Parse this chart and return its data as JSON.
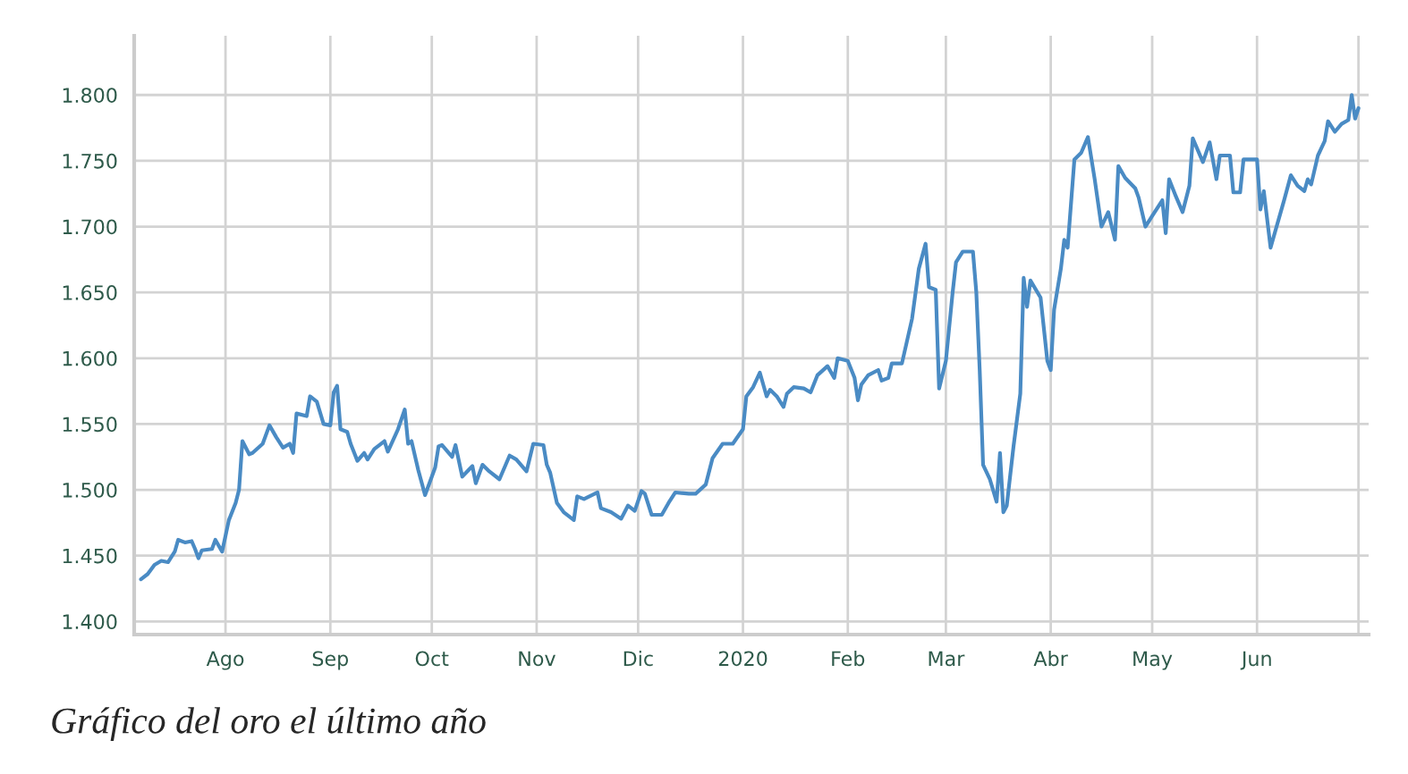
{
  "chart_data": {
    "type": "line",
    "x": [
      "2019-07-07",
      "2019-07-09",
      "2019-07-11",
      "2019-07-13",
      "2019-07-15",
      "2019-07-17",
      "2019-07-18",
      "2019-07-20",
      "2019-07-22",
      "2019-07-23",
      "2019-07-24",
      "2019-07-25",
      "2019-07-28",
      "2019-07-29",
      "2019-07-31",
      "2019-08-02",
      "2019-08-04",
      "2019-08-05",
      "2019-08-06",
      "2019-08-08",
      "2019-08-09",
      "2019-08-12",
      "2019-08-14",
      "2019-08-16",
      "2019-08-18",
      "2019-08-20",
      "2019-08-21",
      "2019-08-22",
      "2019-08-25",
      "2019-08-26",
      "2019-08-28",
      "2019-08-30",
      "2019-09-01",
      "2019-09-02",
      "2019-09-03",
      "2019-09-04",
      "2019-09-06",
      "2019-09-07",
      "2019-09-09",
      "2019-09-11",
      "2019-09-12",
      "2019-09-14",
      "2019-09-17",
      "2019-09-18",
      "2019-09-21",
      "2019-09-23",
      "2019-09-24",
      "2019-09-25",
      "2019-09-27",
      "2019-09-29",
      "2019-10-02",
      "2019-10-03",
      "2019-10-04",
      "2019-10-07",
      "2019-10-08",
      "2019-10-10",
      "2019-10-13",
      "2019-10-14",
      "2019-10-16",
      "2019-10-18",
      "2019-10-21",
      "2019-10-24",
      "2019-10-26",
      "2019-10-29",
      "2019-10-31",
      "2019-11-03",
      "2019-11-04",
      "2019-11-05",
      "2019-11-07",
      "2019-11-09",
      "2019-11-12",
      "2019-11-13",
      "2019-11-15",
      "2019-11-19",
      "2019-11-20",
      "2019-11-23",
      "2019-11-26",
      "2019-11-28",
      "2019-11-30",
      "2019-12-02",
      "2019-12-03",
      "2019-12-05",
      "2019-12-08",
      "2019-12-10",
      "2019-12-12",
      "2019-12-16",
      "2019-12-18",
      "2019-12-21",
      "2019-12-23",
      "2019-12-26",
      "2019-12-29",
      "2020-01-01",
      "2020-01-02",
      "2020-01-04",
      "2020-01-06",
      "2020-01-08",
      "2020-01-09",
      "2020-01-11",
      "2020-01-13",
      "2020-01-14",
      "2020-01-16",
      "2020-01-19",
      "2020-01-21",
      "2020-01-23",
      "2020-01-26",
      "2020-01-28",
      "2020-01-29",
      "2020-02-01",
      "2020-02-03",
      "2020-02-04",
      "2020-02-05",
      "2020-02-07",
      "2020-02-10",
      "2020-02-11",
      "2020-02-13",
      "2020-02-14",
      "2020-02-17",
      "2020-02-20",
      "2020-02-22",
      "2020-02-24",
      "2020-02-25",
      "2020-02-27",
      "2020-02-28",
      "2020-03-01",
      "2020-03-03",
      "2020-03-04",
      "2020-03-06",
      "2020-03-09",
      "2020-03-10",
      "2020-03-11",
      "2020-03-12",
      "2020-03-14",
      "2020-03-16",
      "2020-03-17",
      "2020-03-18",
      "2020-03-19",
      "2020-03-21",
      "2020-03-23",
      "2020-03-24",
      "2020-03-25",
      "2020-03-26",
      "2020-03-29",
      "2020-03-31",
      "2020-04-01",
      "2020-04-02",
      "2020-04-04",
      "2020-04-05",
      "2020-04-06",
      "2020-04-08",
      "2020-04-10",
      "2020-04-12",
      "2020-04-14",
      "2020-04-16",
      "2020-04-18",
      "2020-04-20",
      "2020-04-21",
      "2020-04-23",
      "2020-04-26",
      "2020-04-27",
      "2020-04-29",
      "2020-05-01",
      "2020-05-04",
      "2020-05-05",
      "2020-05-06",
      "2020-05-08",
      "2020-05-10",
      "2020-05-12",
      "2020-05-13",
      "2020-05-16",
      "2020-05-18",
      "2020-05-20",
      "2020-05-21",
      "2020-05-24",
      "2020-05-25",
      "2020-05-27",
      "2020-05-28",
      "2020-06-01",
      "2020-06-02",
      "2020-06-03",
      "2020-06-05",
      "2020-06-07",
      "2020-06-09",
      "2020-06-11",
      "2020-06-13",
      "2020-06-15",
      "2020-06-16",
      "2020-06-17",
      "2020-06-19",
      "2020-06-21",
      "2020-06-22",
      "2020-06-24",
      "2020-06-26",
      "2020-06-28",
      "2020-06-29",
      "2020-06-30",
      "2020-07-01"
    ],
    "series": [
      {
        "color": "#4a8bc4",
        "values": [
          1432,
          1436,
          1443,
          1446,
          1445,
          1453,
          1462,
          1460,
          1461,
          1455,
          1448,
          1454,
          1455,
          1462,
          1453,
          1477,
          1490,
          1500,
          1537,
          1527,
          1528,
          1535,
          1549,
          1540,
          1532,
          1535,
          1528,
          1558,
          1556,
          1571,
          1567,
          1550,
          1549,
          1574,
          1579,
          1546,
          1544,
          1535,
          1522,
          1528,
          1523,
          1531,
          1537,
          1529,
          1546,
          1561,
          1535,
          1537,
          1515,
          1496,
          1517,
          1533,
          1534,
          1525,
          1534,
          1510,
          1518,
          1505,
          1519,
          1514,
          1508,
          1526,
          1523,
          1514,
          1535,
          1534,
          1519,
          1513,
          1490,
          1483,
          1477,
          1495,
          1493,
          1498,
          1486,
          1483,
          1478,
          1488,
          1484,
          1499,
          1497,
          1481,
          1481,
          1490,
          1498,
          1497,
          1497,
          1504,
          1524,
          1535,
          1535,
          1546,
          1571,
          1578,
          1589,
          1571,
          1576,
          1571,
          1563,
          1573,
          1578,
          1577,
          1574,
          1587,
          1594,
          1585,
          1600,
          1598,
          1585,
          1568,
          1580,
          1587,
          1591,
          1583,
          1585,
          1596,
          1596,
          1630,
          1668,
          1687,
          1654,
          1652,
          1577,
          1598,
          1650,
          1673,
          1681,
          1681,
          1650,
          1591,
          1519,
          1508,
          1491,
          1528,
          1483,
          1488,
          1533,
          1573,
          1661,
          1639,
          1659,
          1646,
          1598,
          1591,
          1637,
          1668,
          1690,
          1684,
          1751,
          1756,
          1768,
          1736,
          1700,
          1711,
          1690,
          1746,
          1737,
          1729,
          1722,
          1700,
          1708,
          1720,
          1695,
          1736,
          1723,
          1711,
          1731,
          1767,
          1749,
          1764,
          1736,
          1754,
          1754,
          1726,
          1726,
          1751,
          1751,
          1713,
          1727,
          1684,
          1702,
          1720,
          1739,
          1731,
          1727,
          1736,
          1732,
          1754,
          1765,
          1780,
          1772,
          1778,
          1781,
          1800,
          1782,
          1790
        ]
      }
    ],
    "xlim": [
      "2019-07-05",
      "2020-07-04"
    ],
    "xticks": [
      {
        "value": "2019-08-01",
        "label": "Ago"
      },
      {
        "value": "2019-09-01",
        "label": "Sep"
      },
      {
        "value": "2019-10-01",
        "label": "Oct"
      },
      {
        "value": "2019-11-01",
        "label": "Nov"
      },
      {
        "value": "2019-12-01",
        "label": "Dic"
      },
      {
        "value": "2020-01-01",
        "label": "2020"
      },
      {
        "value": "2020-02-01",
        "label": "Feb"
      },
      {
        "value": "2020-03-01",
        "label": "Mar"
      },
      {
        "value": "2020-04-01",
        "label": "Abr"
      },
      {
        "value": "2020-05-01",
        "label": "May"
      },
      {
        "value": "2020-06-01",
        "label": "Jun"
      },
      {
        "value": "2020-07-01",
        "label": null
      }
    ],
    "ylim": [
      1390,
      1845
    ],
    "yticks": [
      {
        "value": 1400,
        "label": "1.400"
      },
      {
        "value": 1450,
        "label": "1.450"
      },
      {
        "value": 1500,
        "label": "1.500"
      },
      {
        "value": 1550,
        "label": "1.550"
      },
      {
        "value": 1600,
        "label": "1.600"
      },
      {
        "value": 1650,
        "label": "1.650"
      },
      {
        "value": 1700,
        "label": "1.700"
      },
      {
        "value": 1750,
        "label": "1.750"
      },
      {
        "value": 1800,
        "label": "1.800"
      }
    ],
    "grid": true,
    "annotations": [
      "Gráfico del oro el último año"
    ]
  }
}
